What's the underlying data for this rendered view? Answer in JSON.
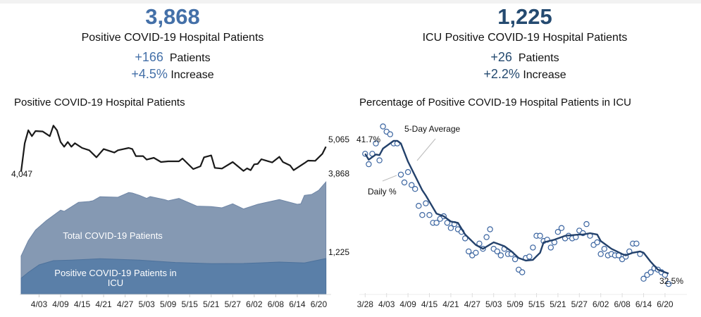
{
  "colors": {
    "left_kpi": "#4470a8",
    "right_kpi": "#244a70",
    "total_area": "#8599b3",
    "icu_area": "#5a7fa8",
    "line_black": "#1a1a1a",
    "avg_line": "#23416b",
    "dot_stroke": "#3a64a0"
  },
  "kpis": [
    {
      "value": "3,868",
      "label": "Positive COVID-19 Hospital Patients",
      "change": "+166",
      "change_unit": "Patients",
      "pct": "+4.5%",
      "pct_unit": "Increase"
    },
    {
      "value": "1,225",
      "label": "ICU Positive COVID-19 Hospital Patients",
      "change": "+26",
      "change_unit": "Patients",
      "pct": "+2.2%",
      "pct_unit": "Increase"
    }
  ],
  "chart_data": [
    {
      "type": "area",
      "title": "Positive COVID-19 Hospital Patients",
      "x_ticks": [
        "4/03",
        "4/09",
        "4/15",
        "4/21",
        "4/27",
        "5/03",
        "5/09",
        "5/15",
        "5/21",
        "5/27",
        "6/02",
        "6/08",
        "6/14",
        "6/20"
      ],
      "line_series": {
        "start_label": "4,047",
        "end_label": "5,065",
        "points": [
          [
            "3/29",
            4047
          ],
          [
            "3/30",
            5211
          ],
          [
            "3/31",
            5745
          ],
          [
            "4/01",
            5502
          ],
          [
            "4/02",
            5715
          ],
          [
            "4/04",
            5696
          ],
          [
            "4/06",
            5502
          ],
          [
            "4/07",
            5939
          ],
          [
            "4/08",
            5745
          ],
          [
            "4/09",
            5260
          ],
          [
            "4/10",
            5066
          ],
          [
            "4/11",
            5260
          ],
          [
            "4/12",
            5066
          ],
          [
            "4/13",
            5211
          ],
          [
            "4/15",
            5017
          ],
          [
            "4/17",
            4920
          ],
          [
            "4/19",
            4629
          ],
          [
            "4/21",
            4969
          ],
          [
            "4/24",
            4823
          ],
          [
            "4/25",
            4920
          ],
          [
            "4/28",
            5017
          ],
          [
            "4/29",
            4969
          ],
          [
            "4/30",
            4678
          ],
          [
            "5/02",
            4678
          ],
          [
            "5/03",
            4532
          ],
          [
            "5/05",
            4610
          ],
          [
            "5/07",
            4435
          ],
          [
            "5/09",
            4464
          ],
          [
            "5/12",
            4464
          ],
          [
            "5/13",
            4580
          ],
          [
            "5/16",
            4144
          ],
          [
            "5/18",
            4260
          ],
          [
            "5/19",
            4629
          ],
          [
            "5/21",
            4707
          ],
          [
            "5/22",
            4192
          ],
          [
            "5/24",
            4163
          ],
          [
            "5/27",
            4435
          ],
          [
            "5/30",
            4066
          ],
          [
            "5/31",
            4173
          ],
          [
            "6/01",
            4096
          ],
          [
            "6/02",
            4338
          ],
          [
            "6/03",
            4357
          ],
          [
            "6/04",
            4551
          ],
          [
            "6/07",
            4416
          ],
          [
            "6/09",
            4648
          ],
          [
            "6/10",
            4435
          ],
          [
            "6/12",
            4290
          ],
          [
            "6/13",
            4096
          ],
          [
            "6/16",
            4387
          ],
          [
            "6/17",
            4493
          ],
          [
            "6/19",
            4483
          ],
          [
            "6/21",
            4775
          ],
          [
            "6/22",
            5065
          ]
        ]
      },
      "series": [
        {
          "name": "Total COVID-19 Patients",
          "end_label": "3,868",
          "points": [
            [
              "3/29",
              1314
            ],
            [
              "3/31",
              1841
            ],
            [
              "4/02",
              2206
            ],
            [
              "4/05",
              2530
            ],
            [
              "4/09",
              2895
            ],
            [
              "4/10",
              2855
            ],
            [
              "4/14",
              3163
            ],
            [
              "4/17",
              3195
            ],
            [
              "4/18",
              3220
            ],
            [
              "4/20",
              3358
            ],
            [
              "4/25",
              3341
            ],
            [
              "4/28",
              3504
            ],
            [
              "4/29",
              3487
            ],
            [
              "5/01",
              3406
            ],
            [
              "5/03",
              3301
            ],
            [
              "5/04",
              3366
            ],
            [
              "5/08",
              3260
            ],
            [
              "5/09",
              3220
            ],
            [
              "5/12",
              3301
            ],
            [
              "5/17",
              3033
            ],
            [
              "5/21",
              3017
            ],
            [
              "5/24",
              2976
            ],
            [
              "5/27",
              3114
            ],
            [
              "5/30",
              2936
            ],
            [
              "6/03",
              3098
            ],
            [
              "6/06",
              3179
            ],
            [
              "6/09",
              3260
            ],
            [
              "6/11",
              3195
            ],
            [
              "6/14",
              3098
            ],
            [
              "6/15",
              3114
            ],
            [
              "6/16",
              3406
            ],
            [
              "6/18",
              3439
            ],
            [
              "6/20",
              3585
            ],
            [
              "6/22",
              3868
            ]
          ]
        },
        {
          "name": "Positive COVID-19 Patients in ICU",
          "end_label": "1,225",
          "points": [
            [
              "3/29",
              543
            ],
            [
              "3/31",
              746
            ],
            [
              "4/03",
              1006
            ],
            [
              "4/07",
              1152
            ],
            [
              "4/12",
              1168
            ],
            [
              "4/20",
              1216
            ],
            [
              "5/01",
              1168
            ],
            [
              "5/11",
              1087
            ],
            [
              "5/21",
              1046
            ],
            [
              "5/30",
              1054
            ],
            [
              "6/09",
              1103
            ],
            [
              "6/16",
              1071
            ],
            [
              "6/22",
              1225
            ]
          ]
        }
      ]
    },
    {
      "type": "scatter",
      "title": "Percentage of Positive COVID-19 Hospital Patients in ICU",
      "x_ticks": [
        "3/28",
        "4/03",
        "4/09",
        "4/15",
        "4/21",
        "4/27",
        "5/03",
        "5/09",
        "5/15",
        "5/21",
        "5/27",
        "6/02",
        "6/08",
        "6/14",
        "6/20"
      ],
      "annotations": {
        "start": "41.7%",
        "end": "32.5%",
        "avg": "5-Day Average",
        "daily": "Daily %"
      },
      "daily_dates": [
        "3/28",
        "3/29",
        "3/30",
        "3/31",
        "4/01",
        "4/02",
        "4/03",
        "4/04",
        "4/05",
        "4/06",
        "4/07",
        "4/08",
        "4/09",
        "4/10",
        "4/11",
        "4/12",
        "4/13",
        "4/14",
        "4/15",
        "4/16",
        "4/17",
        "4/18",
        "4/19",
        "4/20",
        "4/21",
        "4/22",
        "4/23",
        "4/24",
        "4/25",
        "4/26",
        "4/27",
        "4/28",
        "4/29",
        "4/30",
        "5/01",
        "5/02",
        "5/03",
        "5/04",
        "5/05",
        "5/06",
        "5/07",
        "5/08",
        "5/09",
        "5/10",
        "5/11",
        "5/12",
        "5/13",
        "5/14",
        "5/15",
        "5/16",
        "5/17",
        "5/18",
        "5/19",
        "5/20",
        "5/21",
        "5/22",
        "5/23",
        "5/24",
        "5/25",
        "5/26",
        "5/27",
        "5/28",
        "5/29",
        "5/30",
        "5/31",
        "6/01",
        "6/02",
        "6/03",
        "6/04",
        "6/05",
        "6/06",
        "6/07",
        "6/08",
        "6/09",
        "6/10",
        "6/11",
        "6/12",
        "6/13",
        "6/14",
        "6/15",
        "6/16",
        "6/17",
        "6/18",
        "6/19",
        "6/20",
        "6/21"
      ],
      "daily_values": [
        41.7,
        40.9,
        41.7,
        42.5,
        41.2,
        43.8,
        43.4,
        43.2,
        42.5,
        42.5,
        40.1,
        39.5,
        40.3,
        39.3,
        39.0,
        37.7,
        37.0,
        37.9,
        37.0,
        36.4,
        36.4,
        36.7,
        36.9,
        36.4,
        36.0,
        36.3,
        35.9,
        35.7,
        35.2,
        34.2,
        33.9,
        34.1,
        34.8,
        34.4,
        35.3,
        35.9,
        34.4,
        34.2,
        33.9,
        34.4,
        34.0,
        34.0,
        33.6,
        32.8,
        32.6,
        33.7,
        33.8,
        34.5,
        35.4,
        35.4,
        35.0,
        35.1,
        34.5,
        34.9,
        35.7,
        36.0,
        35.2,
        35.4,
        35.2,
        35.3,
        35.8,
        35.6,
        36.3,
        35.4,
        34.7,
        34.9,
        34.0,
        34.4,
        33.9,
        34.0,
        33.9,
        33.9,
        33.6,
        33.8,
        34.2,
        34.8,
        34.8,
        34.0,
        32.1,
        32.4,
        32.6,
        32.9,
        32.8,
        32.6,
        32.4,
        31.7
      ],
      "avg_points": [
        [
          "3/28",
          41.7
        ],
        [
          "3/29",
          41.25
        ],
        [
          "3/31",
          41.65
        ],
        [
          "4/01",
          41.6
        ],
        [
          "4/02",
          42.1
        ],
        [
          "4/05",
          42.7
        ],
        [
          "4/06",
          42.7
        ],
        [
          "4/07",
          42.5
        ],
        [
          "4/09",
          41.1
        ],
        [
          "4/11",
          40.0
        ],
        [
          "4/13",
          38.9
        ],
        [
          "4/14",
          38.5
        ],
        [
          "4/17",
          37.1
        ],
        [
          "4/19",
          36.9
        ],
        [
          "4/21",
          36.5
        ],
        [
          "4/23",
          36.4
        ],
        [
          "4/25",
          35.5
        ],
        [
          "4/28",
          34.7
        ],
        [
          "4/30",
          34.4
        ],
        [
          "5/03",
          34.9
        ],
        [
          "5/04",
          34.8
        ],
        [
          "5/06",
          34.6
        ],
        [
          "5/08",
          34.2
        ],
        [
          "5/10",
          33.7
        ],
        [
          "5/12",
          33.5
        ],
        [
          "5/14",
          33.55
        ],
        [
          "5/16",
          34.1
        ],
        [
          "5/17",
          34.9
        ],
        [
          "5/20",
          35.1
        ],
        [
          "5/23",
          35.4
        ],
        [
          "5/27",
          35.5
        ],
        [
          "5/28",
          35.5
        ],
        [
          "5/30",
          35.6
        ],
        [
          "6/01",
          35.5
        ],
        [
          "6/02",
          35.0
        ],
        [
          "6/05",
          34.4
        ],
        [
          "6/08",
          34.0
        ],
        [
          "6/09",
          33.9
        ],
        [
          "6/11",
          34.1
        ],
        [
          "6/13",
          34.2
        ],
        [
          "6/14",
          34.1
        ],
        [
          "6/16",
          33.4
        ],
        [
          "6/18",
          32.8
        ],
        [
          "6/20",
          32.6
        ],
        [
          "6/21",
          32.5
        ]
      ],
      "ylim": [
        31.3,
        44.5
      ]
    }
  ]
}
